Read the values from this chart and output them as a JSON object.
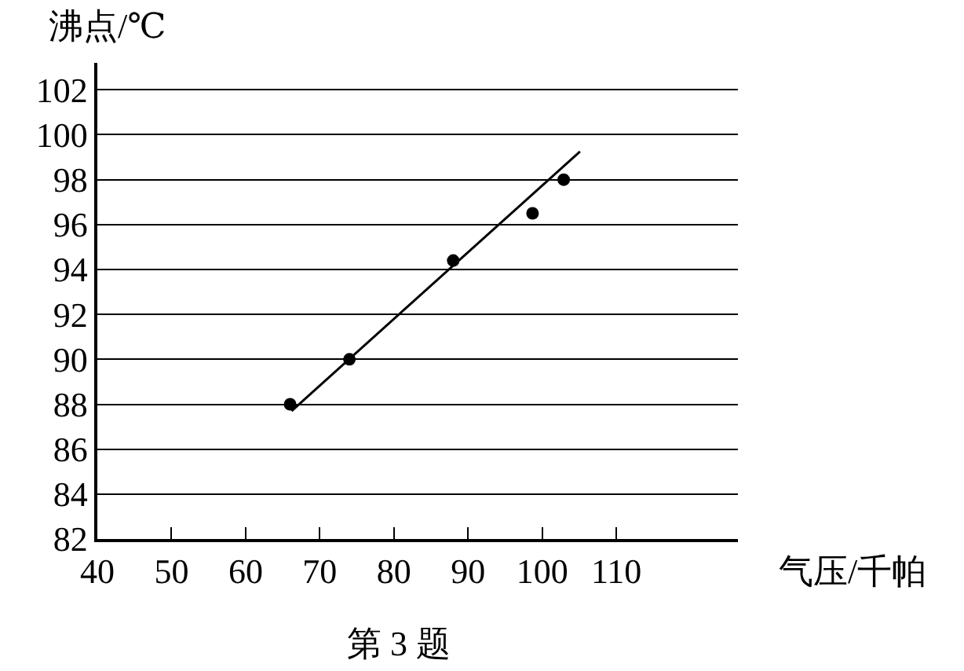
{
  "chart_data": {
    "type": "scatter",
    "xlabel": "气压/千帕",
    "ylabel": "沸点/℃",
    "annotations": [
      "第 3 题"
    ],
    "x": [
      66,
      74,
      88,
      98.7,
      102.9
    ],
    "series": [
      {
        "type": "scatter",
        "color": "#000000",
        "marker": "circle",
        "values": [
          88,
          90,
          94.4,
          96.5,
          98
        ]
      },
      {
        "type": "line",
        "color": "#000000",
        "marker": "none",
        "x": [
          66.2,
          105.1
        ],
        "values": [
          87.7,
          99.25
        ]
      }
    ],
    "xlim": [
      40,
      126.4
    ],
    "xticks": [
      40,
      50,
      60,
      70,
      80,
      90,
      100,
      110
    ],
    "ylim": [
      82,
      103.2
    ],
    "yticks": [
      82,
      84,
      86,
      88,
      90,
      92,
      94,
      96,
      98,
      100,
      102
    ],
    "grid": "y"
  }
}
